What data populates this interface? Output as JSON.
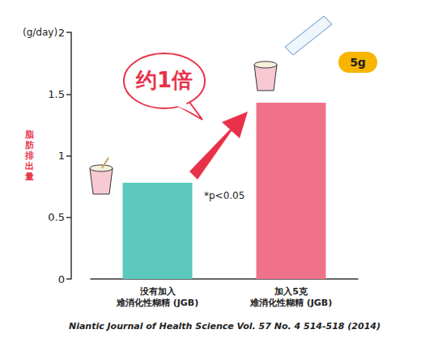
{
  "chart_data": {
    "type": "bar",
    "categories": [
      "没有加入\n难消化性糊精 (JGB)",
      "加入5克\n难消化性糊精 (JGB)"
    ],
    "values": [
      0.78,
      1.43
    ],
    "colors": [
      "#5cc8bf",
      "#f0728a"
    ],
    "ylabel": "脂肪排出量",
    "ylim": [
      0,
      2
    ],
    "yticks": [
      0,
      0.5,
      1,
      1.5,
      2
    ],
    "grid": false,
    "data_labels": false,
    "annotations": [
      "(g/day)",
      "约1倍",
      "5g",
      "*p<0.05"
    ],
    "source": "Niantic Journal of Health Science Vol. 57 No. 4 514-518 (2014)"
  }
}
